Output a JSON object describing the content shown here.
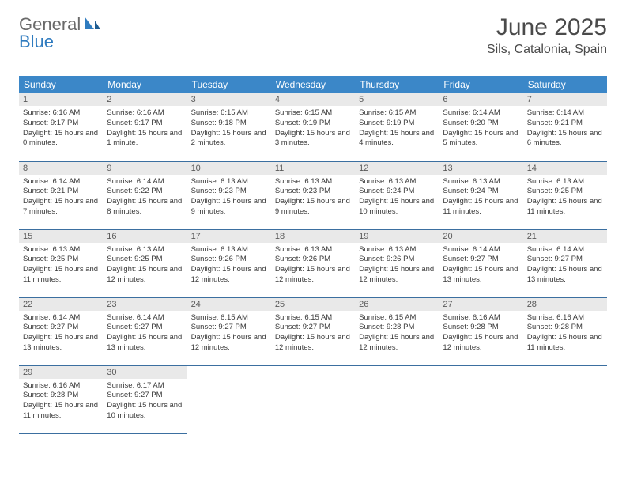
{
  "brand": {
    "text_general": "General",
    "text_blue": "Blue",
    "general_color": "#6a6a6a",
    "blue_color": "#2f7bbf",
    "icon_color": "#2f7bbf"
  },
  "header": {
    "title": "June 2025",
    "location": "Sils, Catalonia, Spain",
    "title_color": "#4a4a4a"
  },
  "colors": {
    "header_bg": "#3b87c8",
    "header_text": "#ffffff",
    "daynum_bg": "#e9e9e9",
    "daynum_text": "#5a5a5a",
    "cell_border": "#3b6fa0",
    "body_text": "#3a3a3a",
    "page_bg": "#ffffff"
  },
  "dayNames": [
    "Sunday",
    "Monday",
    "Tuesday",
    "Wednesday",
    "Thursday",
    "Friday",
    "Saturday"
  ],
  "weeks": [
    [
      {
        "n": "1",
        "sr": "6:16 AM",
        "ss": "9:17 PM",
        "dl": "15 hours and 0 minutes."
      },
      {
        "n": "2",
        "sr": "6:16 AM",
        "ss": "9:17 PM",
        "dl": "15 hours and 1 minute."
      },
      {
        "n": "3",
        "sr": "6:15 AM",
        "ss": "9:18 PM",
        "dl": "15 hours and 2 minutes."
      },
      {
        "n": "4",
        "sr": "6:15 AM",
        "ss": "9:19 PM",
        "dl": "15 hours and 3 minutes."
      },
      {
        "n": "5",
        "sr": "6:15 AM",
        "ss": "9:19 PM",
        "dl": "15 hours and 4 minutes."
      },
      {
        "n": "6",
        "sr": "6:14 AM",
        "ss": "9:20 PM",
        "dl": "15 hours and 5 minutes."
      },
      {
        "n": "7",
        "sr": "6:14 AM",
        "ss": "9:21 PM",
        "dl": "15 hours and 6 minutes."
      }
    ],
    [
      {
        "n": "8",
        "sr": "6:14 AM",
        "ss": "9:21 PM",
        "dl": "15 hours and 7 minutes."
      },
      {
        "n": "9",
        "sr": "6:14 AM",
        "ss": "9:22 PM",
        "dl": "15 hours and 8 minutes."
      },
      {
        "n": "10",
        "sr": "6:13 AM",
        "ss": "9:23 PM",
        "dl": "15 hours and 9 minutes."
      },
      {
        "n": "11",
        "sr": "6:13 AM",
        "ss": "9:23 PM",
        "dl": "15 hours and 9 minutes."
      },
      {
        "n": "12",
        "sr": "6:13 AM",
        "ss": "9:24 PM",
        "dl": "15 hours and 10 minutes."
      },
      {
        "n": "13",
        "sr": "6:13 AM",
        "ss": "9:24 PM",
        "dl": "15 hours and 11 minutes."
      },
      {
        "n": "14",
        "sr": "6:13 AM",
        "ss": "9:25 PM",
        "dl": "15 hours and 11 minutes."
      }
    ],
    [
      {
        "n": "15",
        "sr": "6:13 AM",
        "ss": "9:25 PM",
        "dl": "15 hours and 11 minutes."
      },
      {
        "n": "16",
        "sr": "6:13 AM",
        "ss": "9:25 PM",
        "dl": "15 hours and 12 minutes."
      },
      {
        "n": "17",
        "sr": "6:13 AM",
        "ss": "9:26 PM",
        "dl": "15 hours and 12 minutes."
      },
      {
        "n": "18",
        "sr": "6:13 AM",
        "ss": "9:26 PM",
        "dl": "15 hours and 12 minutes."
      },
      {
        "n": "19",
        "sr": "6:13 AM",
        "ss": "9:26 PM",
        "dl": "15 hours and 12 minutes."
      },
      {
        "n": "20",
        "sr": "6:14 AM",
        "ss": "9:27 PM",
        "dl": "15 hours and 13 minutes."
      },
      {
        "n": "21",
        "sr": "6:14 AM",
        "ss": "9:27 PM",
        "dl": "15 hours and 13 minutes."
      }
    ],
    [
      {
        "n": "22",
        "sr": "6:14 AM",
        "ss": "9:27 PM",
        "dl": "15 hours and 13 minutes."
      },
      {
        "n": "23",
        "sr": "6:14 AM",
        "ss": "9:27 PM",
        "dl": "15 hours and 13 minutes."
      },
      {
        "n": "24",
        "sr": "6:15 AM",
        "ss": "9:27 PM",
        "dl": "15 hours and 12 minutes."
      },
      {
        "n": "25",
        "sr": "6:15 AM",
        "ss": "9:27 PM",
        "dl": "15 hours and 12 minutes."
      },
      {
        "n": "26",
        "sr": "6:15 AM",
        "ss": "9:28 PM",
        "dl": "15 hours and 12 minutes."
      },
      {
        "n": "27",
        "sr": "6:16 AM",
        "ss": "9:28 PM",
        "dl": "15 hours and 12 minutes."
      },
      {
        "n": "28",
        "sr": "6:16 AM",
        "ss": "9:28 PM",
        "dl": "15 hours and 11 minutes."
      }
    ],
    [
      {
        "n": "29",
        "sr": "6:16 AM",
        "ss": "9:28 PM",
        "dl": "15 hours and 11 minutes."
      },
      {
        "n": "30",
        "sr": "6:17 AM",
        "ss": "9:27 PM",
        "dl": "15 hours and 10 minutes."
      },
      null,
      null,
      null,
      null,
      null
    ]
  ],
  "labels": {
    "sunrise": "Sunrise:",
    "sunset": "Sunset:",
    "daylight": "Daylight:"
  }
}
